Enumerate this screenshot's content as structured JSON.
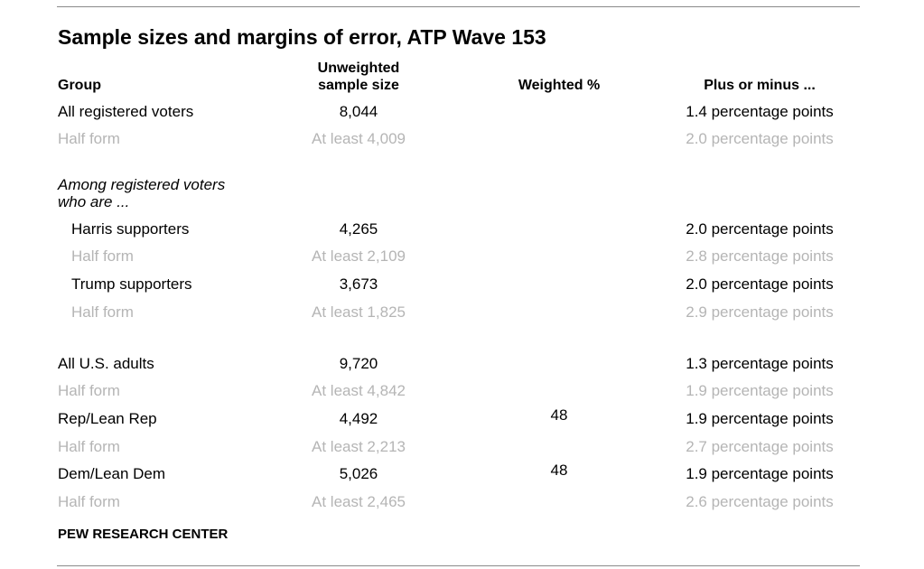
{
  "title": "Sample sizes and margins of error, ATP Wave 153",
  "headers": {
    "group": "Group",
    "unweighted_line1": "Unweighted",
    "unweighted_line2": "sample size",
    "weighted": "Weighted %",
    "margin": "Plus or minus ..."
  },
  "rows": [
    {
      "group": "All registered voters",
      "n": "8,044",
      "weighted": "",
      "moe": "1.4 percentage points"
    },
    {
      "group": "Half form",
      "n": "At least 4,009",
      "weighted": "",
      "moe": "2.0 percentage points"
    }
  ],
  "section_heading_line1": "Among registered voters",
  "section_heading_line2": "who are ...",
  "section_rows": [
    {
      "group": "Harris supporters",
      "n": "4,265",
      "weighted": "",
      "moe": "2.0 percentage points"
    },
    {
      "group": "Half form",
      "n": "At least 2,109",
      "weighted": "",
      "moe": "2.8 percentage points"
    },
    {
      "group": "Trump supporters",
      "n": "3,673",
      "weighted": "",
      "moe": "2.0 percentage points"
    },
    {
      "group": "Half form",
      "n": "At least 1,825",
      "weighted": "",
      "moe": "2.9 percentage points"
    }
  ],
  "adult_rows": [
    {
      "group": "All U.S. adults",
      "n": "9,720",
      "weighted": "",
      "moe": "1.3 percentage points"
    },
    {
      "group": "Half form",
      "n": "At least 4,842",
      "weighted": "",
      "moe": "1.9 percentage points"
    },
    {
      "group": "Rep/Lean Rep",
      "n": "4,492",
      "weighted": "48",
      "moe": "1.9 percentage points"
    },
    {
      "group": "Half form",
      "n": "At least 2,213",
      "weighted": "",
      "moe": "2.7 percentage points"
    },
    {
      "group": "Dem/Lean Dem",
      "n": "5,026",
      "weighted": "48",
      "moe": "1.9 percentage points"
    },
    {
      "group": "Half form",
      "n": "At least 2,465",
      "weighted": "",
      "moe": "2.6 percentage points"
    }
  ],
  "footer": "PEW RESEARCH CENTER",
  "colors": {
    "text": "#000000",
    "muted": "#b5b5b5",
    "rule": "#8a8a8a"
  }
}
